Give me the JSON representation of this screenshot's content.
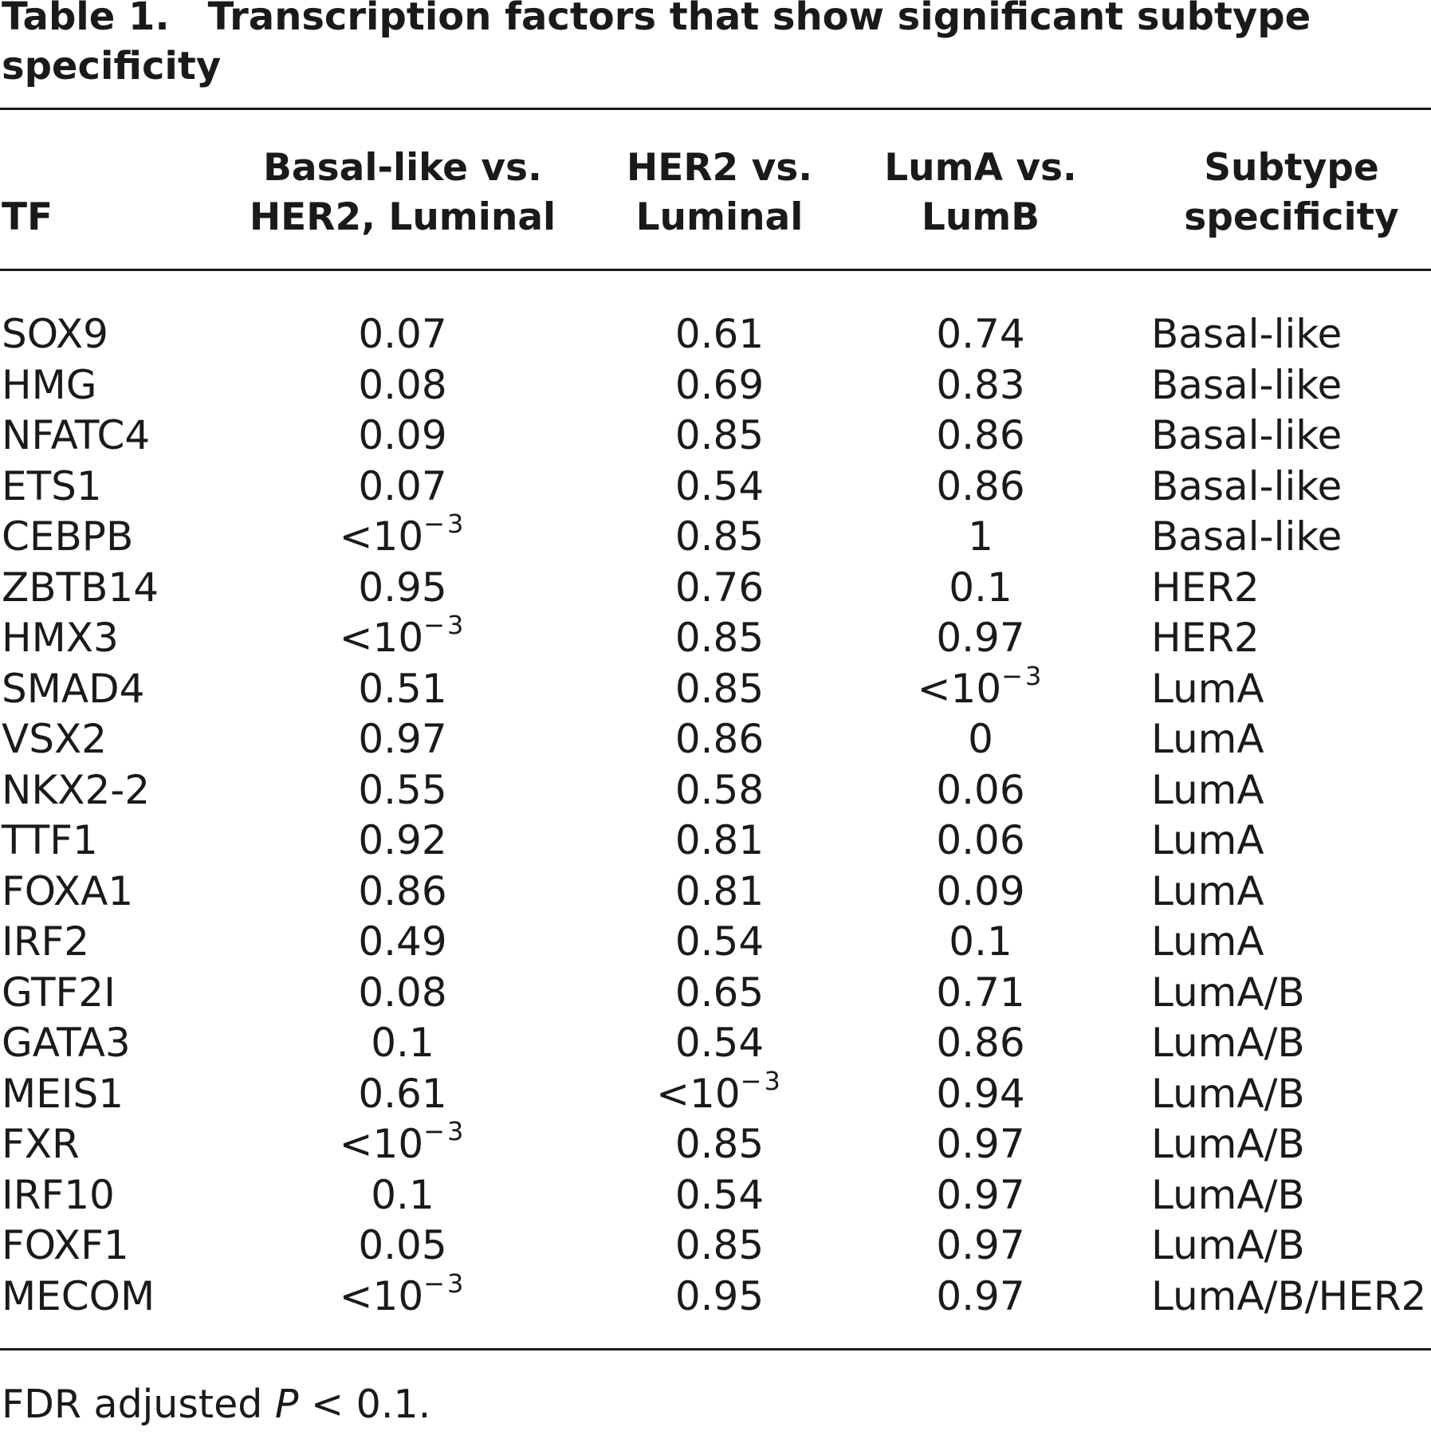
{
  "caption": {
    "label": "Table 1.",
    "title": "Transcription factors that show significant subtype specificity"
  },
  "headers": {
    "tf": "TF",
    "col1_line1": "Basal-like vs.",
    "col1_line2": "HER2, Luminal",
    "col2_line1": "HER2 vs.",
    "col2_line2": "Luminal",
    "col3_line1": "LumA vs.",
    "col3_line2": "LumB",
    "col4_line1": "Subtype",
    "col4_line2": "specificity"
  },
  "rows": [
    {
      "tf": "SOX9",
      "c1": "0.07",
      "c2": "0.61",
      "c3": "0.74",
      "c4": "Basal-like"
    },
    {
      "tf": "HMG",
      "c1": "0.08",
      "c2": "0.69",
      "c3": "0.83",
      "c4": "Basal-like"
    },
    {
      "tf": "NFATC4",
      "c1": "0.09",
      "c2": "0.85",
      "c3": "0.86",
      "c4": "Basal-like"
    },
    {
      "tf": "ETS1",
      "c1": "0.07",
      "c2": "0.54",
      "c3": "0.86",
      "c4": "Basal-like"
    },
    {
      "tf": "CEBPB",
      "c1": "<10",
      "c1_sup": "−3",
      "c2": "0.85",
      "c3": "1",
      "c4": "Basal-like"
    },
    {
      "tf": "ZBTB14",
      "c1": "0.95",
      "c2": "0.76",
      "c3": "0.1",
      "c4": "HER2"
    },
    {
      "tf": "HMX3",
      "c1": "<10",
      "c1_sup": "−3",
      "c2": "0.85",
      "c3": "0.97",
      "c4": "HER2"
    },
    {
      "tf": "SMAD4",
      "c1": "0.51",
      "c2": "0.85",
      "c3": "<10",
      "c3_sup": "−3",
      "c4": "LumA"
    },
    {
      "tf": "VSX2",
      "c1": "0.97",
      "c2": "0.86",
      "c3": "0",
      "c4": "LumA"
    },
    {
      "tf": "NKX2-2",
      "c1": "0.55",
      "c2": "0.58",
      "c3": "0.06",
      "c4": "LumA"
    },
    {
      "tf": "TTF1",
      "c1": "0.92",
      "c2": "0.81",
      "c3": "0.06",
      "c4": "LumA"
    },
    {
      "tf": "FOXA1",
      "c1": "0.86",
      "c2": "0.81",
      "c3": "0.09",
      "c4": "LumA"
    },
    {
      "tf": "IRF2",
      "c1": "0.49",
      "c2": "0.54",
      "c3": "0.1",
      "c4": "LumA"
    },
    {
      "tf": "GTF2I",
      "c1": "0.08",
      "c2": "0.65",
      "c3": "0.71",
      "c4": "LumA/B"
    },
    {
      "tf": "GATA3",
      "c1": "0.1",
      "c2": "0.54",
      "c3": "0.86",
      "c4": "LumA/B"
    },
    {
      "tf": "MEIS1",
      "c1": "0.61",
      "c2": "<10",
      "c2_sup": "−3",
      "c3": "0.94",
      "c4": "LumA/B"
    },
    {
      "tf": "FXR",
      "c1": "<10",
      "c1_sup": "−3",
      "c2": "0.85",
      "c3": "0.97",
      "c4": "LumA/B"
    },
    {
      "tf": "IRF10",
      "c1": "0.1",
      "c2": "0.54",
      "c3": "0.97",
      "c4": "LumA/B"
    },
    {
      "tf": "FOXF1",
      "c1": "0.05",
      "c2": "0.85",
      "c3": "0.97",
      "c4": "LumA/B"
    },
    {
      "tf": "MECOM",
      "c1": "<10",
      "c1_sup": "−3",
      "c2": "0.95",
      "c3": "0.97",
      "c4": "LumA/B/HER2"
    }
  ],
  "footnote": {
    "before": "FDR adjusted ",
    "p": "P",
    "after": " < 0.1."
  }
}
